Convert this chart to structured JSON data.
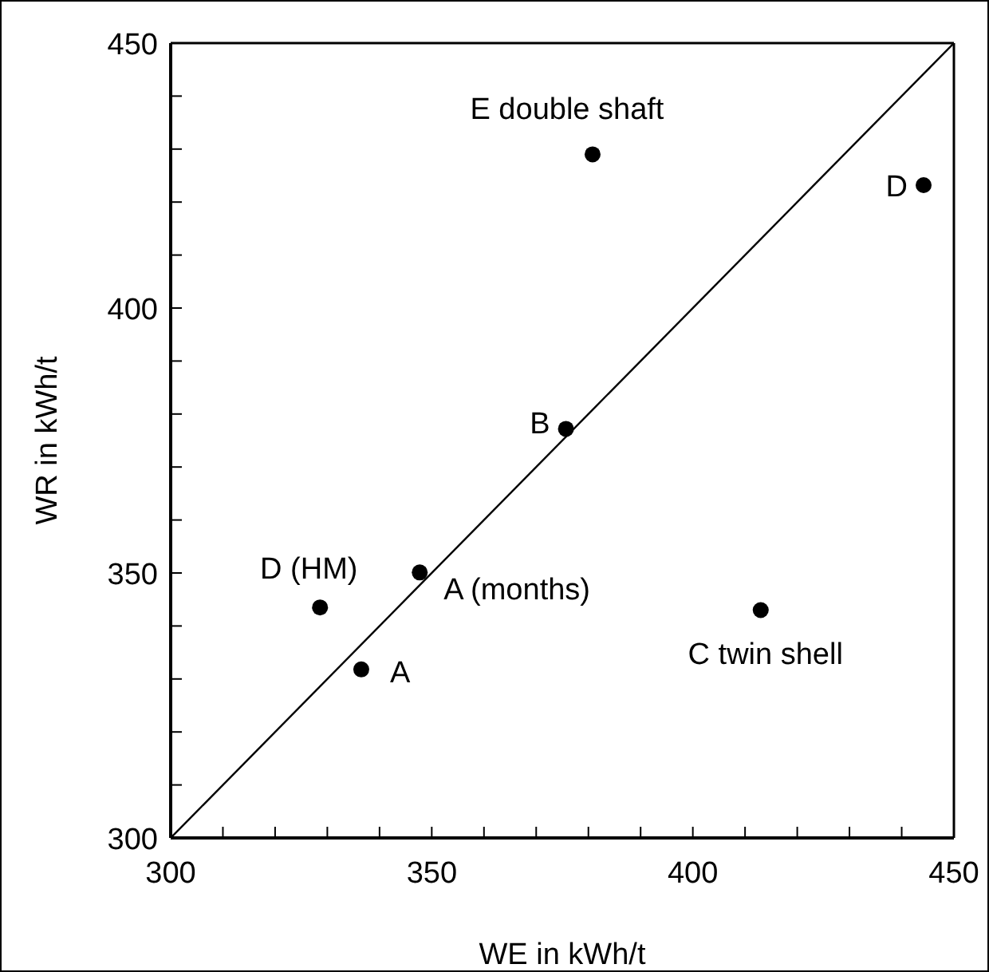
{
  "chart_data": {
    "type": "scatter",
    "xlabel": "WE in kWh/t",
    "ylabel": "WR in kWh/t",
    "xlim": [
      300,
      450
    ],
    "ylim": [
      300,
      450
    ],
    "xticks": [
      300,
      {
        "value": 310,
        "label": null
      },
      {
        "value": 320,
        "label": null
      },
      {
        "value": 330,
        "label": null
      },
      {
        "value": 340,
        "label": null
      },
      350,
      {
        "value": 360,
        "label": null
      },
      {
        "value": 370,
        "label": null
      },
      {
        "value": 380,
        "label": null
      },
      {
        "value": 390,
        "label": null
      },
      400,
      {
        "value": 410,
        "label": null
      },
      {
        "value": 420,
        "label": null
      },
      {
        "value": 430,
        "label": null
      },
      {
        "value": 440,
        "label": null
      },
      450
    ],
    "yticks": [
      300,
      {
        "value": 310,
        "label": null
      },
      {
        "value": 320,
        "label": null
      },
      {
        "value": 330,
        "label": null
      },
      {
        "value": 340,
        "label": null
      },
      350,
      {
        "value": 360,
        "label": null
      },
      {
        "value": 370,
        "label": null
      },
      {
        "value": 380,
        "label": null
      },
      {
        "value": 390,
        "label": null
      },
      400,
      {
        "value": 410,
        "label": null
      },
      {
        "value": 420,
        "label": null
      },
      {
        "value": 430,
        "label": null
      },
      {
        "value": 440,
        "label": null
      },
      450
    ],
    "grid": false,
    "legend": false,
    "marker": "circle",
    "series": [
      {
        "color": "#000000",
        "x": [
          380.8,
          444.2,
          375.7,
          347.7,
          328.6,
          336.5,
          413
        ],
        "values": [
          429,
          423.2,
          377.2,
          350.1,
          343.5,
          331.8,
          343
        ]
      },
      {
        "type": "line",
        "color": "#000000",
        "marker": "none",
        "x": [
          300,
          450
        ],
        "values": [
          300,
          450
        ]
      }
    ],
    "annotations": [
      {
        "text": "E double shaft",
        "x": 380.8,
        "y": 429
      },
      {
        "text": "D",
        "x": 444.2,
        "y": 423.2
      },
      {
        "text": "B",
        "x": 375.7,
        "y": 377.2
      },
      {
        "text": "A (months)",
        "x": 347.7,
        "y": 350.1
      },
      {
        "text": "D (HM)",
        "x": 328.6,
        "y": 343.5
      },
      {
        "text": "A",
        "x": 336.5,
        "y": 331.8
      },
      {
        "text": "C twin shell",
        "x": 413,
        "y": 343
      }
    ]
  }
}
